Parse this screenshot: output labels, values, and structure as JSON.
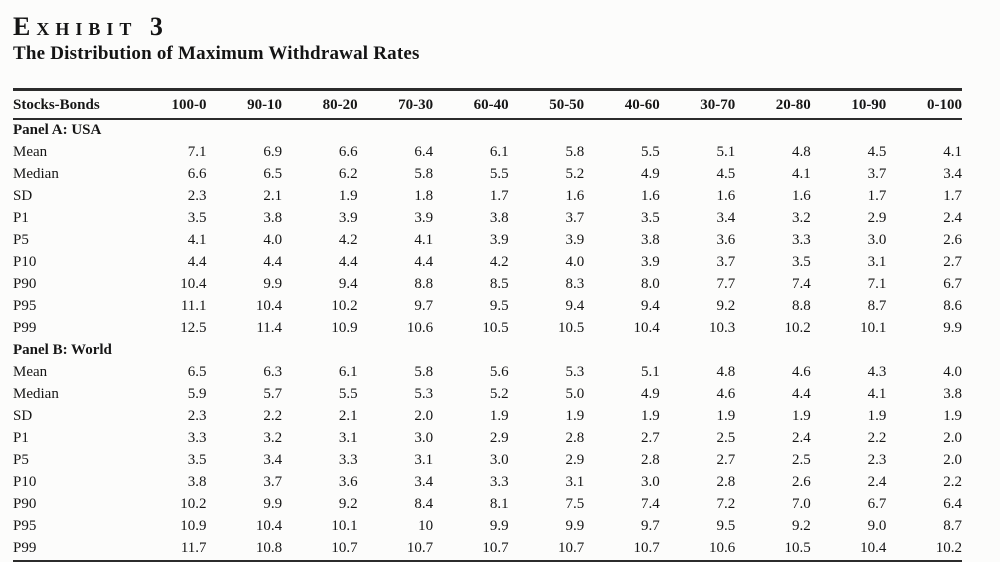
{
  "exhibit": {
    "label": "Exhibit 3",
    "title": "The Distribution of Maximum Withdrawal Rates"
  },
  "table": {
    "columns": [
      "Stocks-Bonds",
      "100-0",
      "90-10",
      "80-20",
      "70-30",
      "60-40",
      "50-50",
      "40-60",
      "30-70",
      "20-80",
      "10-90",
      "0-100"
    ],
    "panels": [
      {
        "label": "Panel A: USA",
        "rows": [
          {
            "label": "Mean",
            "values": [
              "7.1",
              "6.9",
              "6.6",
              "6.4",
              "6.1",
              "5.8",
              "5.5",
              "5.1",
              "4.8",
              "4.5",
              "4.1"
            ]
          },
          {
            "label": "Median",
            "values": [
              "6.6",
              "6.5",
              "6.2",
              "5.8",
              "5.5",
              "5.2",
              "4.9",
              "4.5",
              "4.1",
              "3.7",
              "3.4"
            ]
          },
          {
            "label": "SD",
            "values": [
              "2.3",
              "2.1",
              "1.9",
              "1.8",
              "1.7",
              "1.6",
              "1.6",
              "1.6",
              "1.6",
              "1.7",
              "1.7"
            ]
          },
          {
            "label": "P1",
            "values": [
              "3.5",
              "3.8",
              "3.9",
              "3.9",
              "3.8",
              "3.7",
              "3.5",
              "3.4",
              "3.2",
              "2.9",
              "2.4"
            ]
          },
          {
            "label": "P5",
            "values": [
              "4.1",
              "4.0",
              "4.2",
              "4.1",
              "3.9",
              "3.9",
              "3.8",
              "3.6",
              "3.3",
              "3.0",
              "2.6"
            ]
          },
          {
            "label": "P10",
            "values": [
              "4.4",
              "4.4",
              "4.4",
              "4.4",
              "4.2",
              "4.0",
              "3.9",
              "3.7",
              "3.5",
              "3.1",
              "2.7"
            ]
          },
          {
            "label": "P90",
            "values": [
              "10.4",
              "9.9",
              "9.4",
              "8.8",
              "8.5",
              "8.3",
              "8.0",
              "7.7",
              "7.4",
              "7.1",
              "6.7"
            ]
          },
          {
            "label": "P95",
            "values": [
              "11.1",
              "10.4",
              "10.2",
              "9.7",
              "9.5",
              "9.4",
              "9.4",
              "9.2",
              "8.8",
              "8.7",
              "8.6"
            ]
          },
          {
            "label": "P99",
            "values": [
              "12.5",
              "11.4",
              "10.9",
              "10.6",
              "10.5",
              "10.5",
              "10.4",
              "10.3",
              "10.2",
              "10.1",
              "9.9"
            ]
          }
        ]
      },
      {
        "label": "Panel B: World",
        "rows": [
          {
            "label": "Mean",
            "values": [
              "6.5",
              "6.3",
              "6.1",
              "5.8",
              "5.6",
              "5.3",
              "5.1",
              "4.8",
              "4.6",
              "4.3",
              "4.0"
            ]
          },
          {
            "label": "Median",
            "values": [
              "5.9",
              "5.7",
              "5.5",
              "5.3",
              "5.2",
              "5.0",
              "4.9",
              "4.6",
              "4.4",
              "4.1",
              "3.8"
            ]
          },
          {
            "label": "SD",
            "values": [
              "2.3",
              "2.2",
              "2.1",
              "2.0",
              "1.9",
              "1.9",
              "1.9",
              "1.9",
              "1.9",
              "1.9",
              "1.9"
            ]
          },
          {
            "label": "P1",
            "values": [
              "3.3",
              "3.2",
              "3.1",
              "3.0",
              "2.9",
              "2.8",
              "2.7",
              "2.5",
              "2.4",
              "2.2",
              "2.0"
            ]
          },
          {
            "label": "P5",
            "values": [
              "3.5",
              "3.4",
              "3.3",
              "3.1",
              "3.0",
              "2.9",
              "2.8",
              "2.7",
              "2.5",
              "2.3",
              "2.0"
            ]
          },
          {
            "label": "P10",
            "values": [
              "3.8",
              "3.7",
              "3.6",
              "3.4",
              "3.3",
              "3.1",
              "3.0",
              "2.8",
              "2.6",
              "2.4",
              "2.2"
            ]
          },
          {
            "label": "P90",
            "values": [
              "10.2",
              "9.9",
              "9.2",
              "8.4",
              "8.1",
              "7.5",
              "7.4",
              "7.2",
              "7.0",
              "6.7",
              "6.4"
            ]
          },
          {
            "label": "P95",
            "values": [
              "10.9",
              "10.4",
              "10.1",
              "10",
              "9.9",
              "9.9",
              "9.7",
              "9.5",
              "9.2",
              "9.0",
              "8.7"
            ]
          },
          {
            "label": "P99",
            "values": [
              "11.7",
              "10.8",
              "10.7",
              "10.7",
              "10.7",
              "10.7",
              "10.7",
              "10.6",
              "10.5",
              "10.4",
              "10.2"
            ]
          }
        ]
      }
    ]
  }
}
